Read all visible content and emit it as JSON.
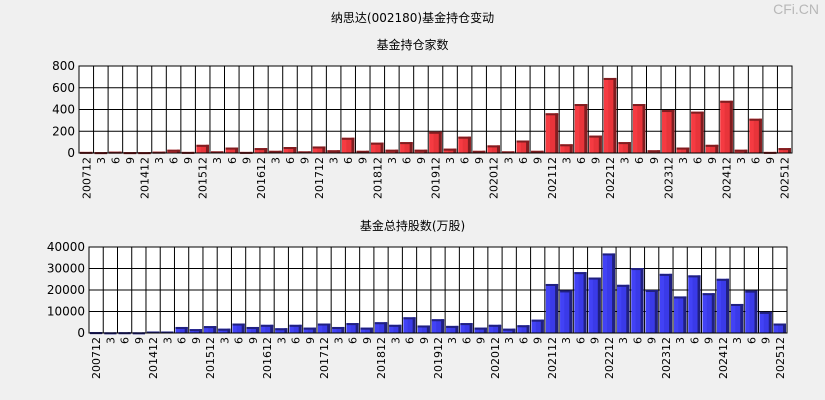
{
  "title": "纳思达(002180)基金持仓变动",
  "watermark": "CFi.CN",
  "chart_data": [
    {
      "type": "bar",
      "title": "基金持仓家数",
      "categories": [
        "200712",
        "3",
        "6",
        "9",
        "201412",
        "3",
        "6",
        "9",
        "201512",
        "3",
        "6",
        "9",
        "201612",
        "3",
        "6",
        "9",
        "201712",
        "3",
        "6",
        "9",
        "201812",
        "3",
        "6",
        "9",
        "201912",
        "3",
        "6",
        "9",
        "202012",
        "3",
        "6",
        "9",
        "202112",
        "3",
        "6",
        "9",
        "202212",
        "3",
        "6",
        "9",
        "202312",
        "3",
        "6",
        "9",
        "202412",
        "3",
        "6",
        "9",
        "202512"
      ],
      "values": [
        10,
        8,
        12,
        8,
        8,
        12,
        30,
        10,
        75,
        15,
        50,
        10,
        45,
        20,
        55,
        15,
        60,
        25,
        140,
        20,
        95,
        30,
        100,
        30,
        195,
        40,
        150,
        20,
        70,
        15,
        115,
        20,
        365,
        80,
        450,
        160,
        690,
        100,
        450,
        25,
        395,
        50,
        380,
        75,
        480,
        30,
        315,
        10,
        45
      ],
      "ylim": [
        0,
        800
      ],
      "yticks": [
        0,
        200,
        400,
        600,
        800
      ],
      "color": "#e8343a"
    },
    {
      "type": "bar",
      "title": "基金总持股数(万股)",
      "categories": [
        "200712",
        "3",
        "6",
        "9",
        "201412",
        "3",
        "6",
        "9",
        "201512",
        "3",
        "6",
        "9",
        "201612",
        "3",
        "6",
        "9",
        "201712",
        "3",
        "6",
        "9",
        "201812",
        "3",
        "6",
        "9",
        "201912",
        "3",
        "6",
        "9",
        "202012",
        "3",
        "6",
        "9",
        "202112",
        "3",
        "6",
        "9",
        "202212",
        "3",
        "6",
        "9",
        "202312",
        "3",
        "6",
        "9",
        "202412",
        "3",
        "6",
        "9",
        "202512"
      ],
      "values": [
        400,
        300,
        350,
        300,
        700,
        700,
        2800,
        1800,
        3200,
        2000,
        4400,
        2800,
        3800,
        2200,
        3800,
        2500,
        4400,
        2800,
        4600,
        2500,
        5000,
        3800,
        7300,
        3500,
        6400,
        3300,
        4600,
        2500,
        3800,
        2000,
        3600,
        6200,
        22800,
        19800,
        28300,
        25800,
        37000,
        22400,
        30200,
        20000,
        27500,
        17000,
        26800,
        18500,
        25200,
        13500,
        19700,
        9800,
        4400
      ],
      "ylim": [
        0,
        40000
      ],
      "yticks": [
        0,
        10000,
        20000,
        30000,
        40000
      ],
      "color": "#3a3ae8"
    }
  ]
}
